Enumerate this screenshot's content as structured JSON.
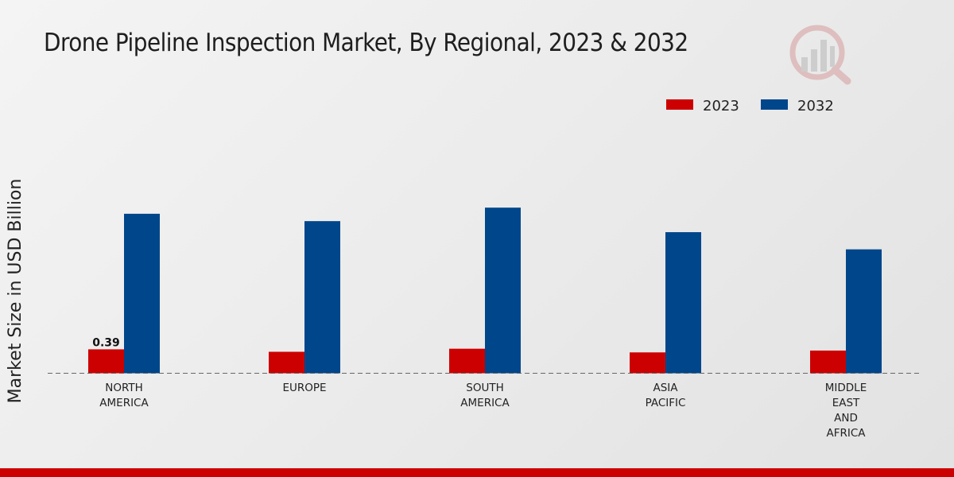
{
  "chart_data": {
    "type": "bar",
    "title": "Drone Pipeline Inspection Market, By Regional, 2023 & 2032",
    "xlabel": "",
    "ylabel": "Market Size in USD Billion",
    "categories": [
      [
        "NORTH",
        "AMERICA"
      ],
      [
        "EUROPE"
      ],
      [
        "SOUTH",
        "AMERICA"
      ],
      [
        "ASIA",
        "PACIFIC"
      ],
      [
        "MIDDLE",
        "EAST",
        "AND",
        "AFRICA"
      ]
    ],
    "series": [
      {
        "name": "2023",
        "color": "#cc0000",
        "values": [
          0.39,
          0.35,
          0.4,
          0.34,
          0.37
        ]
      },
      {
        "name": "2032",
        "color": "#00468b",
        "values": [
          2.6,
          2.48,
          2.7,
          2.3,
          2.02
        ]
      }
    ],
    "data_labels": [
      {
        "series": 0,
        "index": 0,
        "text": "0.39"
      }
    ],
    "ylim": [
      0,
      4.4
    ],
    "grid": false,
    "baseline": "dashed",
    "legend_position": "top-right"
  }
}
